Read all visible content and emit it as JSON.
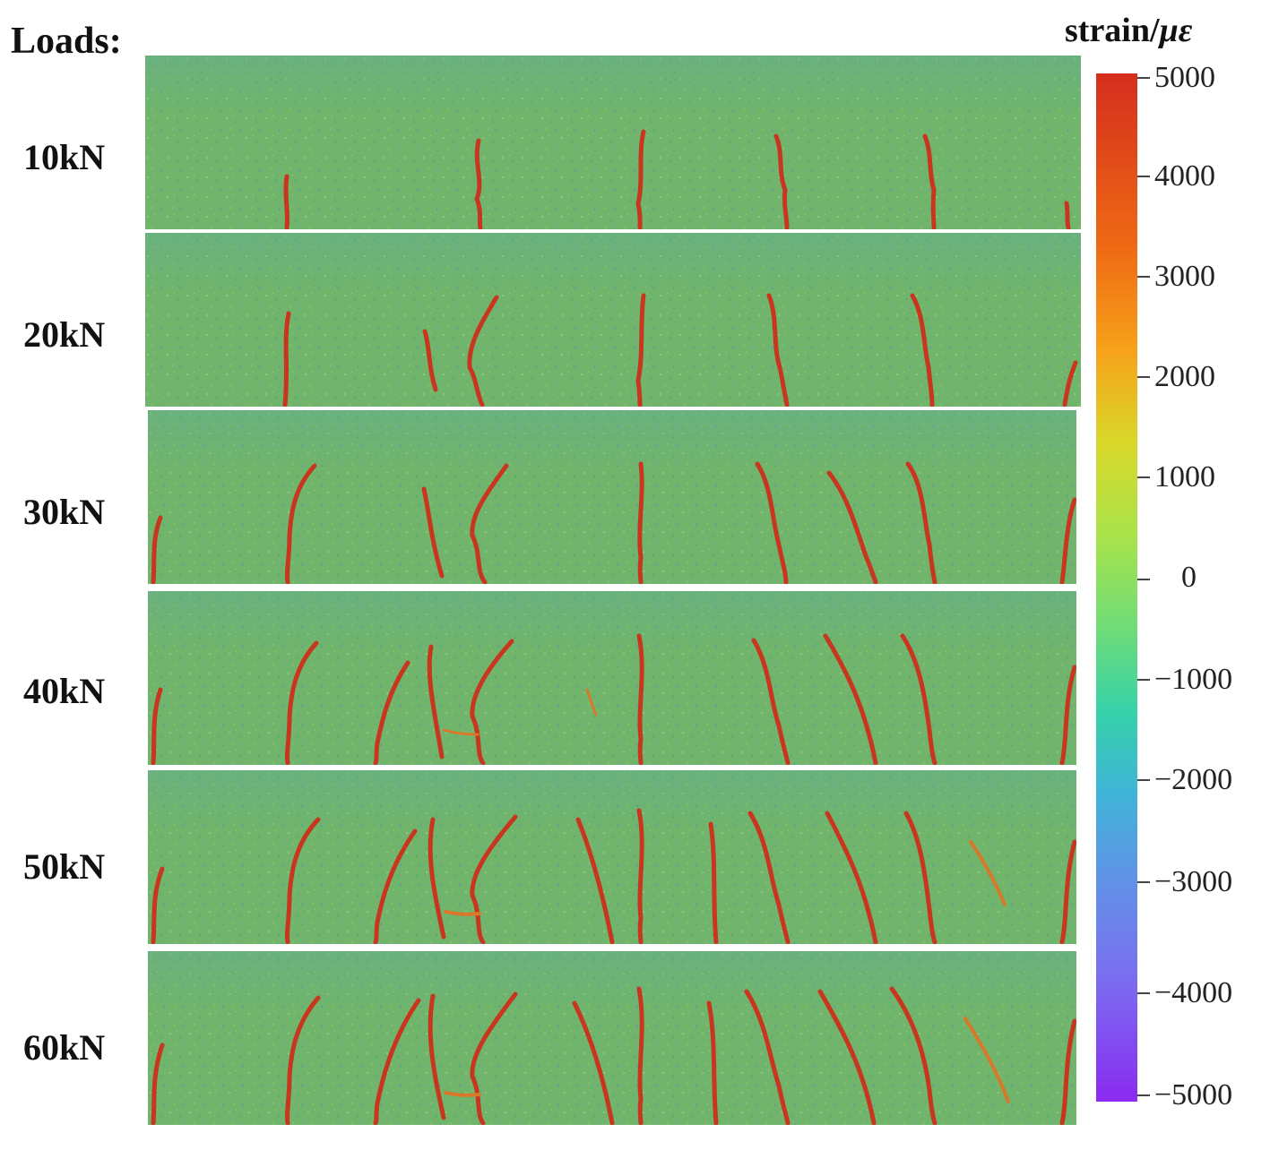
{
  "header": {
    "loads_title": "Loads:"
  },
  "loads": [
    "10kN",
    "20kN",
    "30kN",
    "40kN",
    "50kN",
    "60kN"
  ],
  "colorbar": {
    "title_prefix": "strain/",
    "title_unit": "με",
    "ticks": [
      "5000",
      "4000",
      "3000",
      "2000",
      "1000",
      "0",
      "−1000",
      "−2000",
      "−3000",
      "−4000",
      "−5000"
    ]
  },
  "colors": {
    "background_field": "#6fb46a",
    "crack": "#c8361f",
    "crack_glow": "#e07a2a"
  }
}
